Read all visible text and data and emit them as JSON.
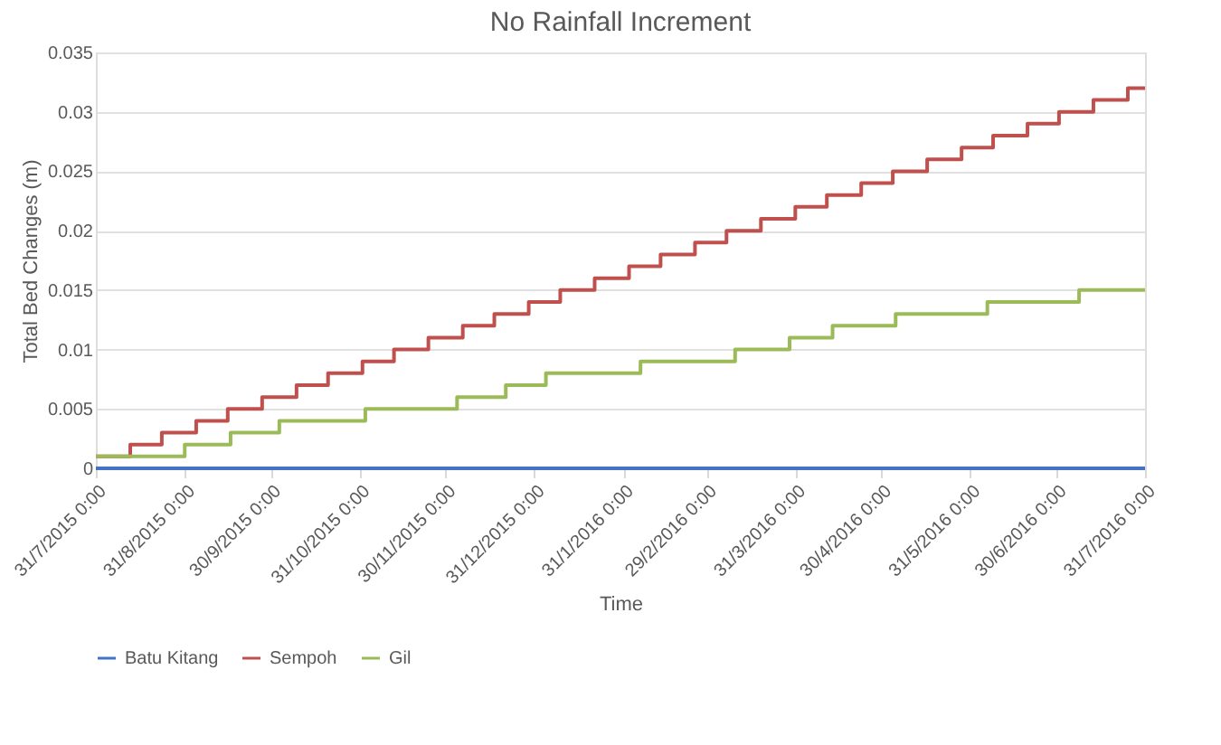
{
  "chart_data": {
    "type": "step",
    "title": "No Rainfall Increment",
    "xlabel": "Time",
    "ylabel": "Total  Bed Changes (m)",
    "xlim": [
      "2015-07-31",
      "2016-07-31"
    ],
    "xticks": [
      {
        "value": "2015-07-31",
        "label": "31/7/2015 0:00"
      },
      {
        "value": "2015-08-31",
        "label": "31/8/2015 0:00"
      },
      {
        "value": "2015-09-30",
        "label": "30/9/2015 0:00"
      },
      {
        "value": "2015-10-31",
        "label": "31/10/2015 0:00"
      },
      {
        "value": "2015-11-30",
        "label": "30/11/2015 0:00"
      },
      {
        "value": "2015-12-31",
        "label": "31/12/2015 0:00"
      },
      {
        "value": "2016-01-31",
        "label": "31/1/2016 0:00"
      },
      {
        "value": "2016-02-29",
        "label": "29/2/2016 0:00"
      },
      {
        "value": "2016-03-31",
        "label": "31/3/2016 0:00"
      },
      {
        "value": "2016-04-30",
        "label": "30/4/2016 0:00"
      },
      {
        "value": "2016-05-31",
        "label": "31/5/2016 0:00"
      },
      {
        "value": "2016-06-30",
        "label": "30/6/2016 0:00"
      },
      {
        "value": "2016-07-31",
        "label": "31/7/2016 0:00"
      }
    ],
    "ylim": [
      0,
      0.035
    ],
    "yticks": [
      0,
      0.005,
      0.01,
      0.015,
      0.02,
      0.025,
      0.03,
      0.035
    ],
    "grid": "y",
    "legend": "bottom",
    "marker": "none",
    "series": [
      {
        "name": "Batu Kitang",
        "color": "#4472c4",
        "x": [
          "2015-07-31",
          "2016-07-31"
        ],
        "values": [
          0,
          0
        ]
      },
      {
        "name": "Sempoh",
        "color": "#c0504d",
        "x": [
          "2015-07-31",
          "2015-08-12",
          "2015-08-23",
          "2015-09-04",
          "2015-09-15",
          "2015-09-27",
          "2015-10-09",
          "2015-10-20",
          "2015-11-01",
          "2015-11-12",
          "2015-11-24",
          "2015-12-06",
          "2015-12-17",
          "2015-12-29",
          "2016-01-09",
          "2016-01-21",
          "2016-02-02",
          "2016-02-13",
          "2016-02-25",
          "2016-03-07",
          "2016-03-19",
          "2016-03-31",
          "2016-04-11",
          "2016-04-23",
          "2016-05-04",
          "2016-05-16",
          "2016-05-28",
          "2016-06-08",
          "2016-06-20",
          "2016-07-01",
          "2016-07-13",
          "2016-07-25",
          "2016-07-31"
        ],
        "values": [
          0.001,
          0.002,
          0.003,
          0.004,
          0.005,
          0.006,
          0.007,
          0.008,
          0.009,
          0.01,
          0.011,
          0.012,
          0.013,
          0.014,
          0.015,
          0.016,
          0.017,
          0.018,
          0.019,
          0.02,
          0.021,
          0.022,
          0.023,
          0.024,
          0.025,
          0.026,
          0.027,
          0.028,
          0.029,
          0.03,
          0.031,
          0.032,
          0.032
        ]
      },
      {
        "name": "Gil",
        "color": "#9bbb59",
        "x": [
          "2015-07-31",
          "2015-08-31",
          "2015-09-16",
          "2015-10-03",
          "2015-11-02",
          "2015-12-04",
          "2015-12-21",
          "2016-01-04",
          "2016-02-06",
          "2016-03-10",
          "2016-03-29",
          "2016-04-13",
          "2016-05-05",
          "2016-06-06",
          "2016-07-08",
          "2016-07-31"
        ],
        "values": [
          0.001,
          0.002,
          0.003,
          0.004,
          0.005,
          0.006,
          0.007,
          0.008,
          0.009,
          0.01,
          0.011,
          0.012,
          0.013,
          0.014,
          0.015,
          0.015
        ]
      }
    ]
  }
}
